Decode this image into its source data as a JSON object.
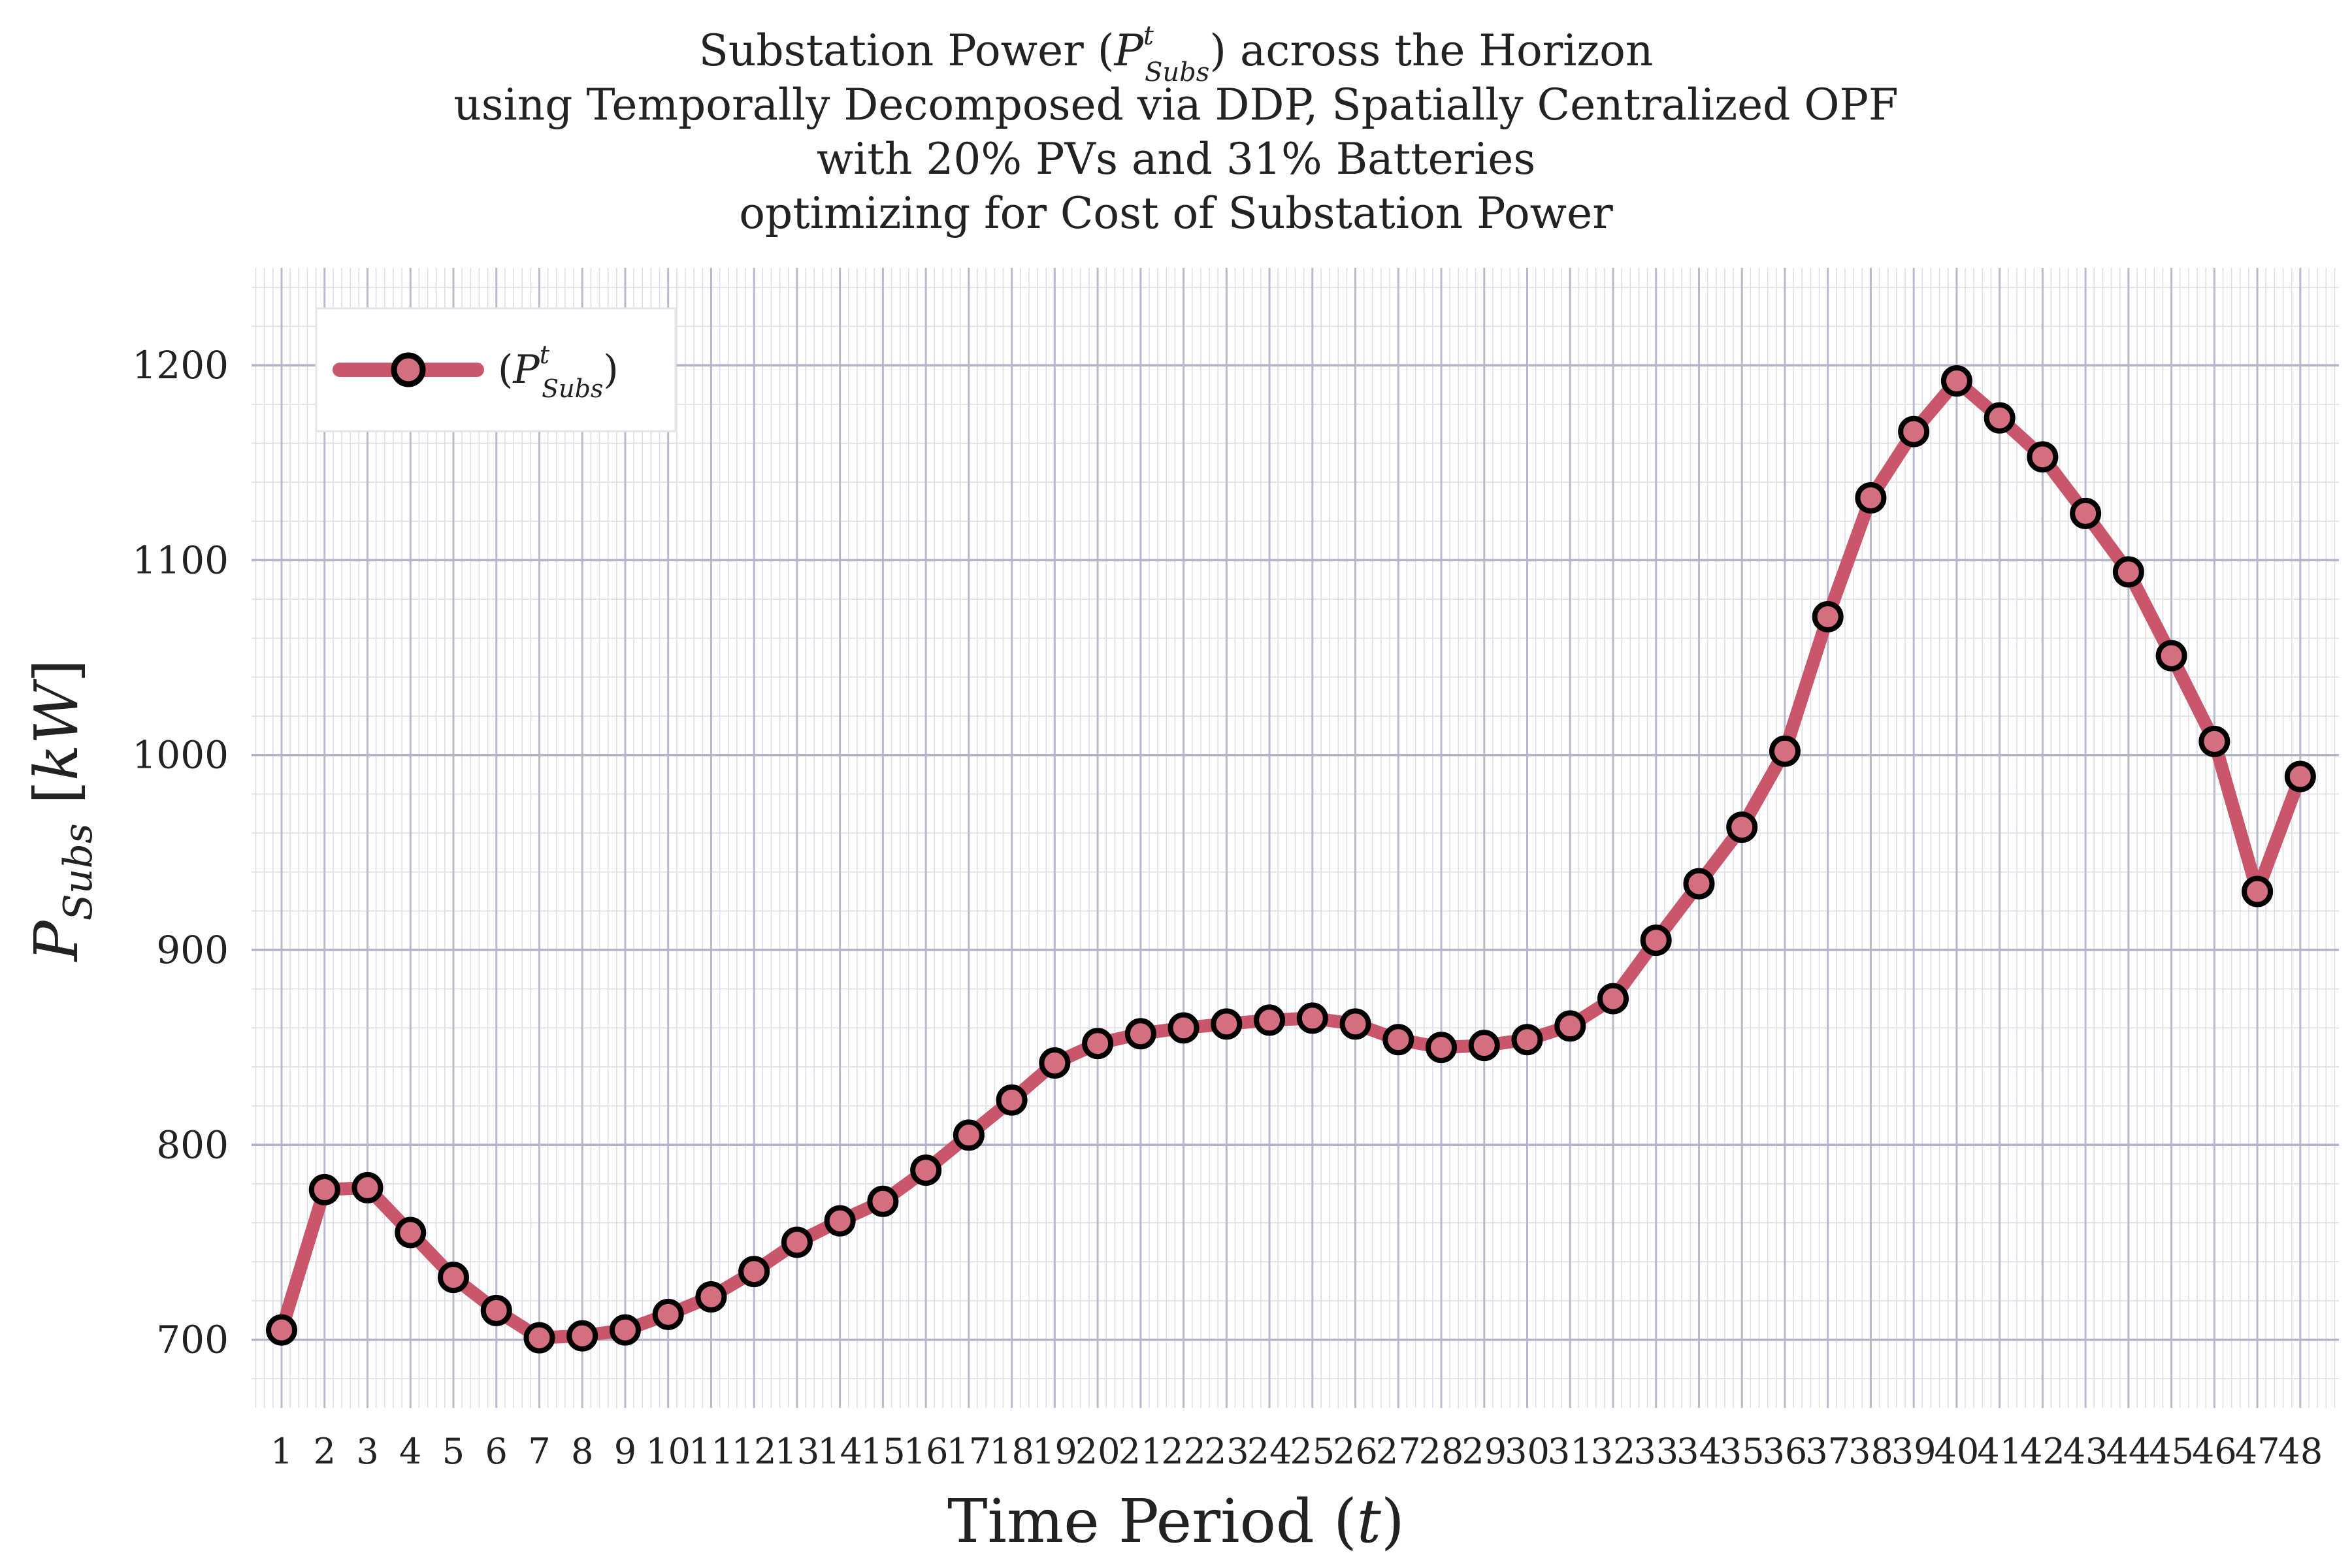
{
  "chart_data": {
    "type": "line",
    "title_lines": [
      "Substation Power (Pᵗ_Subs) across the Horizon",
      "using Temporally Decomposed via DDP, Spatially Centralized OPF",
      "with 20% PVs and 31% Batteries",
      "optimizing for Cost of Substation Power"
    ],
    "xlabel": "Time Period (t)",
    "ylabel": "P_Subs [kW]",
    "x": [
      1,
      2,
      3,
      4,
      5,
      6,
      7,
      8,
      9,
      10,
      11,
      12,
      13,
      14,
      15,
      16,
      17,
      18,
      19,
      20,
      21,
      22,
      23,
      24,
      25,
      26,
      27,
      28,
      29,
      30,
      31,
      32,
      33,
      34,
      35,
      36,
      37,
      38,
      39,
      40,
      41,
      42,
      43,
      44,
      45,
      46,
      47,
      48
    ],
    "x_tick_labels": [
      "1",
      "2",
      "3",
      "4",
      "5",
      "6",
      "7",
      "8",
      "9",
      "10",
      "11",
      "12",
      "13",
      "14",
      "15",
      "16",
      "17",
      "18",
      "19",
      "20",
      "21",
      "22",
      "23",
      "24",
      "25",
      "26",
      "27",
      "28",
      "29",
      "30",
      "31",
      "32",
      "33",
      "34",
      "35",
      "36",
      "37",
      "38",
      "39",
      "40",
      "41",
      "42",
      "43",
      "44",
      "45",
      "46",
      "47",
      "48"
    ],
    "y_ticks": [
      700,
      800,
      900,
      1000,
      1100,
      1200
    ],
    "y_tick_labels": [
      "700",
      "800",
      "900",
      "1000",
      "1100",
      "1200"
    ],
    "xlim": [
      0.3,
      48.9
    ],
    "ylim": [
      665,
      1250
    ],
    "grid": true,
    "legend_position": "top-left",
    "series": [
      {
        "name": "(Pᵗ_Subs)",
        "color": "#c9566b",
        "marker_fill": "#d46f80",
        "marker_edge": "#000000",
        "values": [
          705,
          777,
          778,
          755,
          732,
          715,
          701,
          702,
          705,
          713,
          722,
          735,
          750,
          761,
          771,
          787,
          805,
          823,
          842,
          852,
          857,
          860,
          862,
          864,
          865,
          862,
          854,
          850,
          851,
          854,
          861,
          875,
          905,
          934,
          963,
          1002,
          1071,
          1132,
          1166,
          1192,
          1173,
          1153,
          1124,
          1094,
          1051,
          1007,
          930,
          989
        ]
      }
    ]
  }
}
